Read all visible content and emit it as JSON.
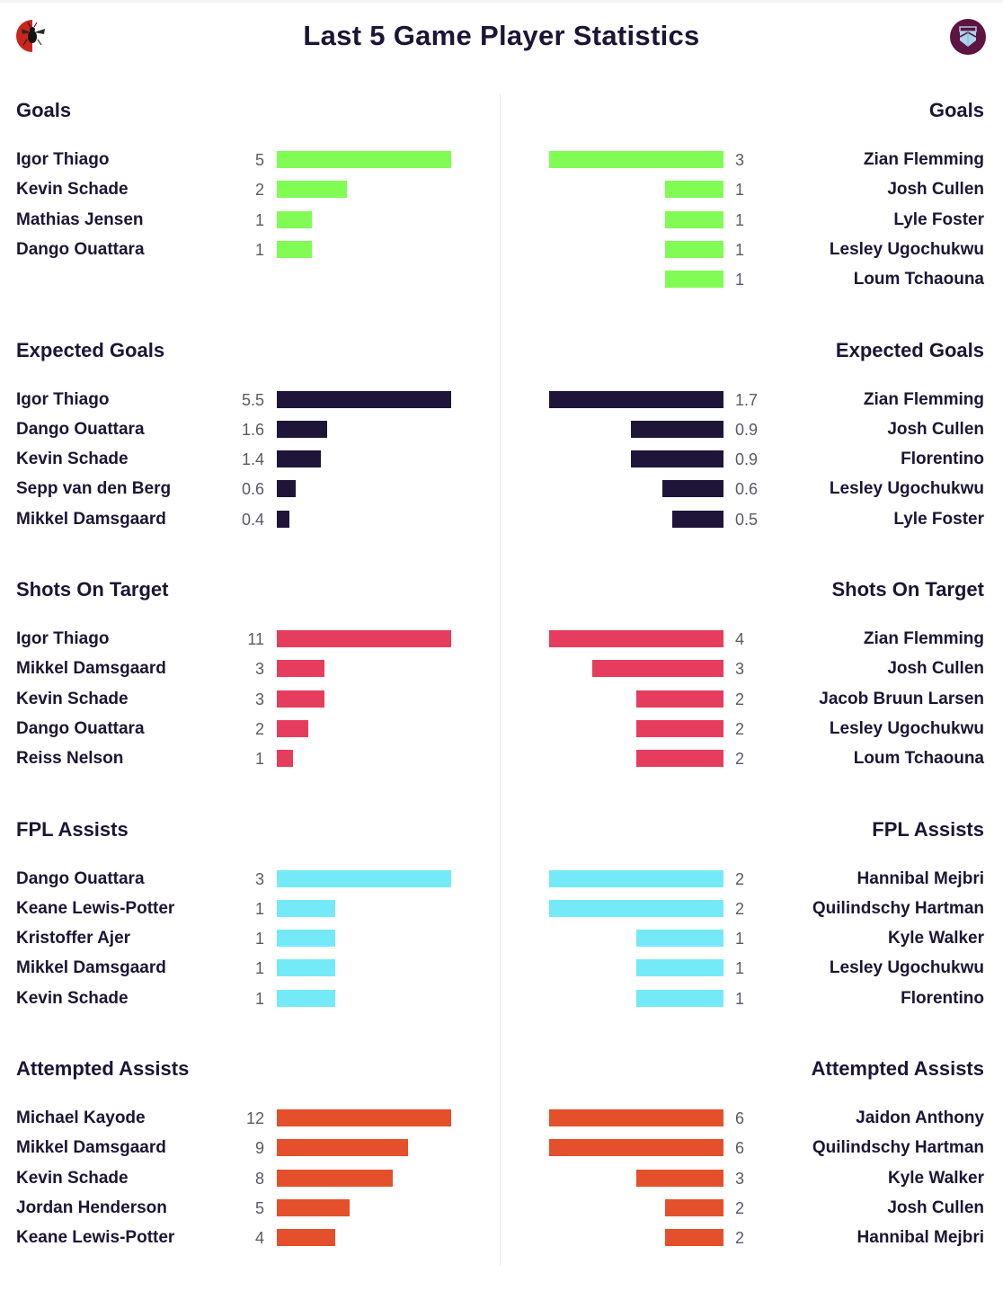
{
  "header": {
    "title": "Last 5 Game Player Statistics",
    "home_badge_icon": "brentford-bee-crest-icon",
    "away_badge_icon": "west-ham-crest-icon"
  },
  "colors": {
    "goals": "#80fc55",
    "expected_goals": "#1f1539",
    "shots_on_target": "#e63d5f",
    "fpl_assists": "#74eaf8",
    "attempted_assists": "#e3502b",
    "text": "#1c1535",
    "value_text": "#5a5a64"
  },
  "chart_data": [
    {
      "type": "bar",
      "orientation": "horizontal",
      "title": "Goals",
      "side": "home",
      "categories": [
        "Igor Thiago",
        "Kevin Schade",
        "Mathias Jensen",
        "Dango Ouattara"
      ],
      "values": [
        5,
        2,
        1,
        1
      ],
      "color": "#80fc55"
    },
    {
      "type": "bar",
      "orientation": "horizontal",
      "title": "Goals",
      "side": "away",
      "categories": [
        "Zian Flemming",
        "Josh Cullen",
        "Lyle Foster",
        "Lesley Ugochukwu",
        "Loum Tchaouna"
      ],
      "values": [
        3,
        1,
        1,
        1,
        1
      ],
      "color": "#80fc55"
    },
    {
      "type": "bar",
      "orientation": "horizontal",
      "title": "Expected Goals",
      "side": "home",
      "categories": [
        "Igor Thiago",
        "Dango Ouattara",
        "Kevin Schade",
        "Sepp van den Berg",
        "Mikkel Damsgaard"
      ],
      "values": [
        5.5,
        1.6,
        1.4,
        0.6,
        0.4
      ],
      "color": "#1f1539"
    },
    {
      "type": "bar",
      "orientation": "horizontal",
      "title": "Expected Goals",
      "side": "away",
      "categories": [
        "Zian Flemming",
        "Josh Cullen",
        "Florentino",
        "Lesley Ugochukwu",
        "Lyle Foster"
      ],
      "values": [
        1.7,
        0.9,
        0.9,
        0.6,
        0.5
      ],
      "color": "#1f1539"
    },
    {
      "type": "bar",
      "orientation": "horizontal",
      "title": "Shots On Target",
      "side": "home",
      "categories": [
        "Igor Thiago",
        "Mikkel Damsgaard",
        "Kevin Schade",
        "Dango Ouattara",
        "Reiss Nelson"
      ],
      "values": [
        11,
        3,
        3,
        2,
        1
      ],
      "color": "#e63d5f"
    },
    {
      "type": "bar",
      "orientation": "horizontal",
      "title": "Shots On Target",
      "side": "away",
      "categories": [
        "Zian Flemming",
        "Josh Cullen",
        "Jacob Bruun Larsen",
        "Lesley Ugochukwu",
        "Loum Tchaouna"
      ],
      "values": [
        4,
        3,
        2,
        2,
        2
      ],
      "color": "#e63d5f"
    },
    {
      "type": "bar",
      "orientation": "horizontal",
      "title": "FPL Assists",
      "side": "home",
      "categories": [
        "Dango Ouattara",
        "Keane Lewis-Potter",
        "Kristoffer Ajer",
        "Mikkel Damsgaard",
        "Kevin Schade"
      ],
      "values": [
        3,
        1,
        1,
        1,
        1
      ],
      "color": "#74eaf8"
    },
    {
      "type": "bar",
      "orientation": "horizontal",
      "title": "FPL Assists",
      "side": "away",
      "categories": [
        "Hannibal Mejbri",
        "Quilindschy Hartman",
        "Kyle Walker",
        "Lesley Ugochukwu",
        "Florentino"
      ],
      "values": [
        2,
        2,
        1,
        1,
        1
      ],
      "color": "#74eaf8"
    },
    {
      "type": "bar",
      "orientation": "horizontal",
      "title": "Attempted Assists",
      "side": "home",
      "categories": [
        "Michael Kayode",
        "Mikkel Damsgaard",
        "Kevin Schade",
        "Jordan Henderson",
        "Keane Lewis-Potter"
      ],
      "values": [
        12,
        9,
        8,
        5,
        4
      ],
      "color": "#e3502b"
    },
    {
      "type": "bar",
      "orientation": "horizontal",
      "title": "Attempted Assists",
      "side": "away",
      "categories": [
        "Jaidon Anthony",
        "Quilindschy Hartman",
        "Kyle Walker",
        "Josh Cullen",
        "Hannibal Mejbri"
      ],
      "values": [
        6,
        6,
        3,
        2,
        2
      ],
      "color": "#e3502b"
    }
  ]
}
